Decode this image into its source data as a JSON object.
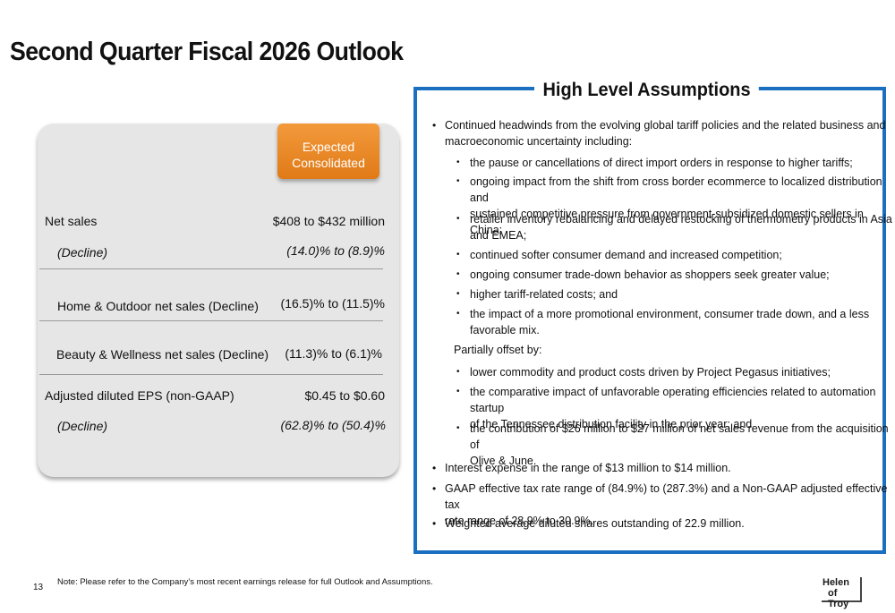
{
  "title": "Second Quarter Fiscal 2026 Outlook",
  "outlook": {
    "column_header": "Expected Consolidated",
    "rows": {
      "net_sales_label": "Net sales",
      "net_sales_value": "$408 to $432 million",
      "net_sales_decline_label": "(Decline)",
      "net_sales_decline_value": "(14.0)% to (8.9)%",
      "home_outdoor_label": "Home & Outdoor net sales (Decline)",
      "home_outdoor_value": "(16.5)% to (11.5)%",
      "beauty_wellness_label": "Beauty & Wellness net sales (Decline)",
      "beauty_wellness_value": "(11.3)% to (6.1)%",
      "eps_label": "Adjusted diluted EPS (non-GAAP)",
      "eps_value": "$0.45 to $0.60",
      "eps_decline_label": "(Decline)",
      "eps_decline_value": "(62.8)% to (50.4)%"
    }
  },
  "assumptions": {
    "heading": "High Level Assumptions",
    "bullet1_line1": "Continued headwinds from the evolving global tariff policies and the related business and",
    "bullet1_line2": "macroeconomic uncertainty including:",
    "sub1": "the pause or cancellations of direct import orders in response to higher tariffs;",
    "sub2_line1": "ongoing impact from the shift from cross border ecommerce to localized distribution and",
    "sub2_line2": "sustained competitive pressure from government-subsidized domestic sellers in China;",
    "sub3_line1": "retailer inventory rebalancing and delayed restocking of thermometry products in Asia",
    "sub3_line2": "and EMEA;",
    "sub4": "continued softer consumer demand and increased competition;",
    "sub5": "ongoing consumer trade-down behavior as shoppers seek greater value;",
    "sub6": "higher tariff-related costs; and",
    "sub7_line1": "the impact of a more promotional environment, consumer trade down, and a less",
    "sub7_line2": "favorable mix.",
    "offset_label": "Partially offset by:",
    "sub8": "lower commodity and product costs driven by Project Pegasus initiatives;",
    "sub9_line1": "the comparative impact of unfavorable operating efficiencies related to automation startup",
    "sub9_line2": "of the Tennessee distribution facility in the prior year; and",
    "sub10_line1": "the contribution of $26 million to $27 million of net sales revenue from the acquisition of",
    "sub10_line2": "Olive & June.",
    "bullet2": "Interest expense in the range of $13 million to $14 million.",
    "bullet3_line1": "GAAP effective tax rate range of (84.9%) to (287.3%) and a Non-GAAP adjusted effective tax",
    "bullet3_line2": "rate range of 28.9% to 30.9%.",
    "bullet4": "Weighted average diluted shares outstanding of 22.9 million."
  },
  "footer": {
    "note": "Note: Please refer to the Company’s most recent earnings release for full Outlook and Assumptions.",
    "page_number": "13",
    "logo_line1": "Helen",
    "logo_line2": "of Troy"
  },
  "colors": {
    "accent_blue": "#1b6fc1",
    "accent_orange": "#e98a27",
    "card_gray": "#e6e6e6"
  }
}
